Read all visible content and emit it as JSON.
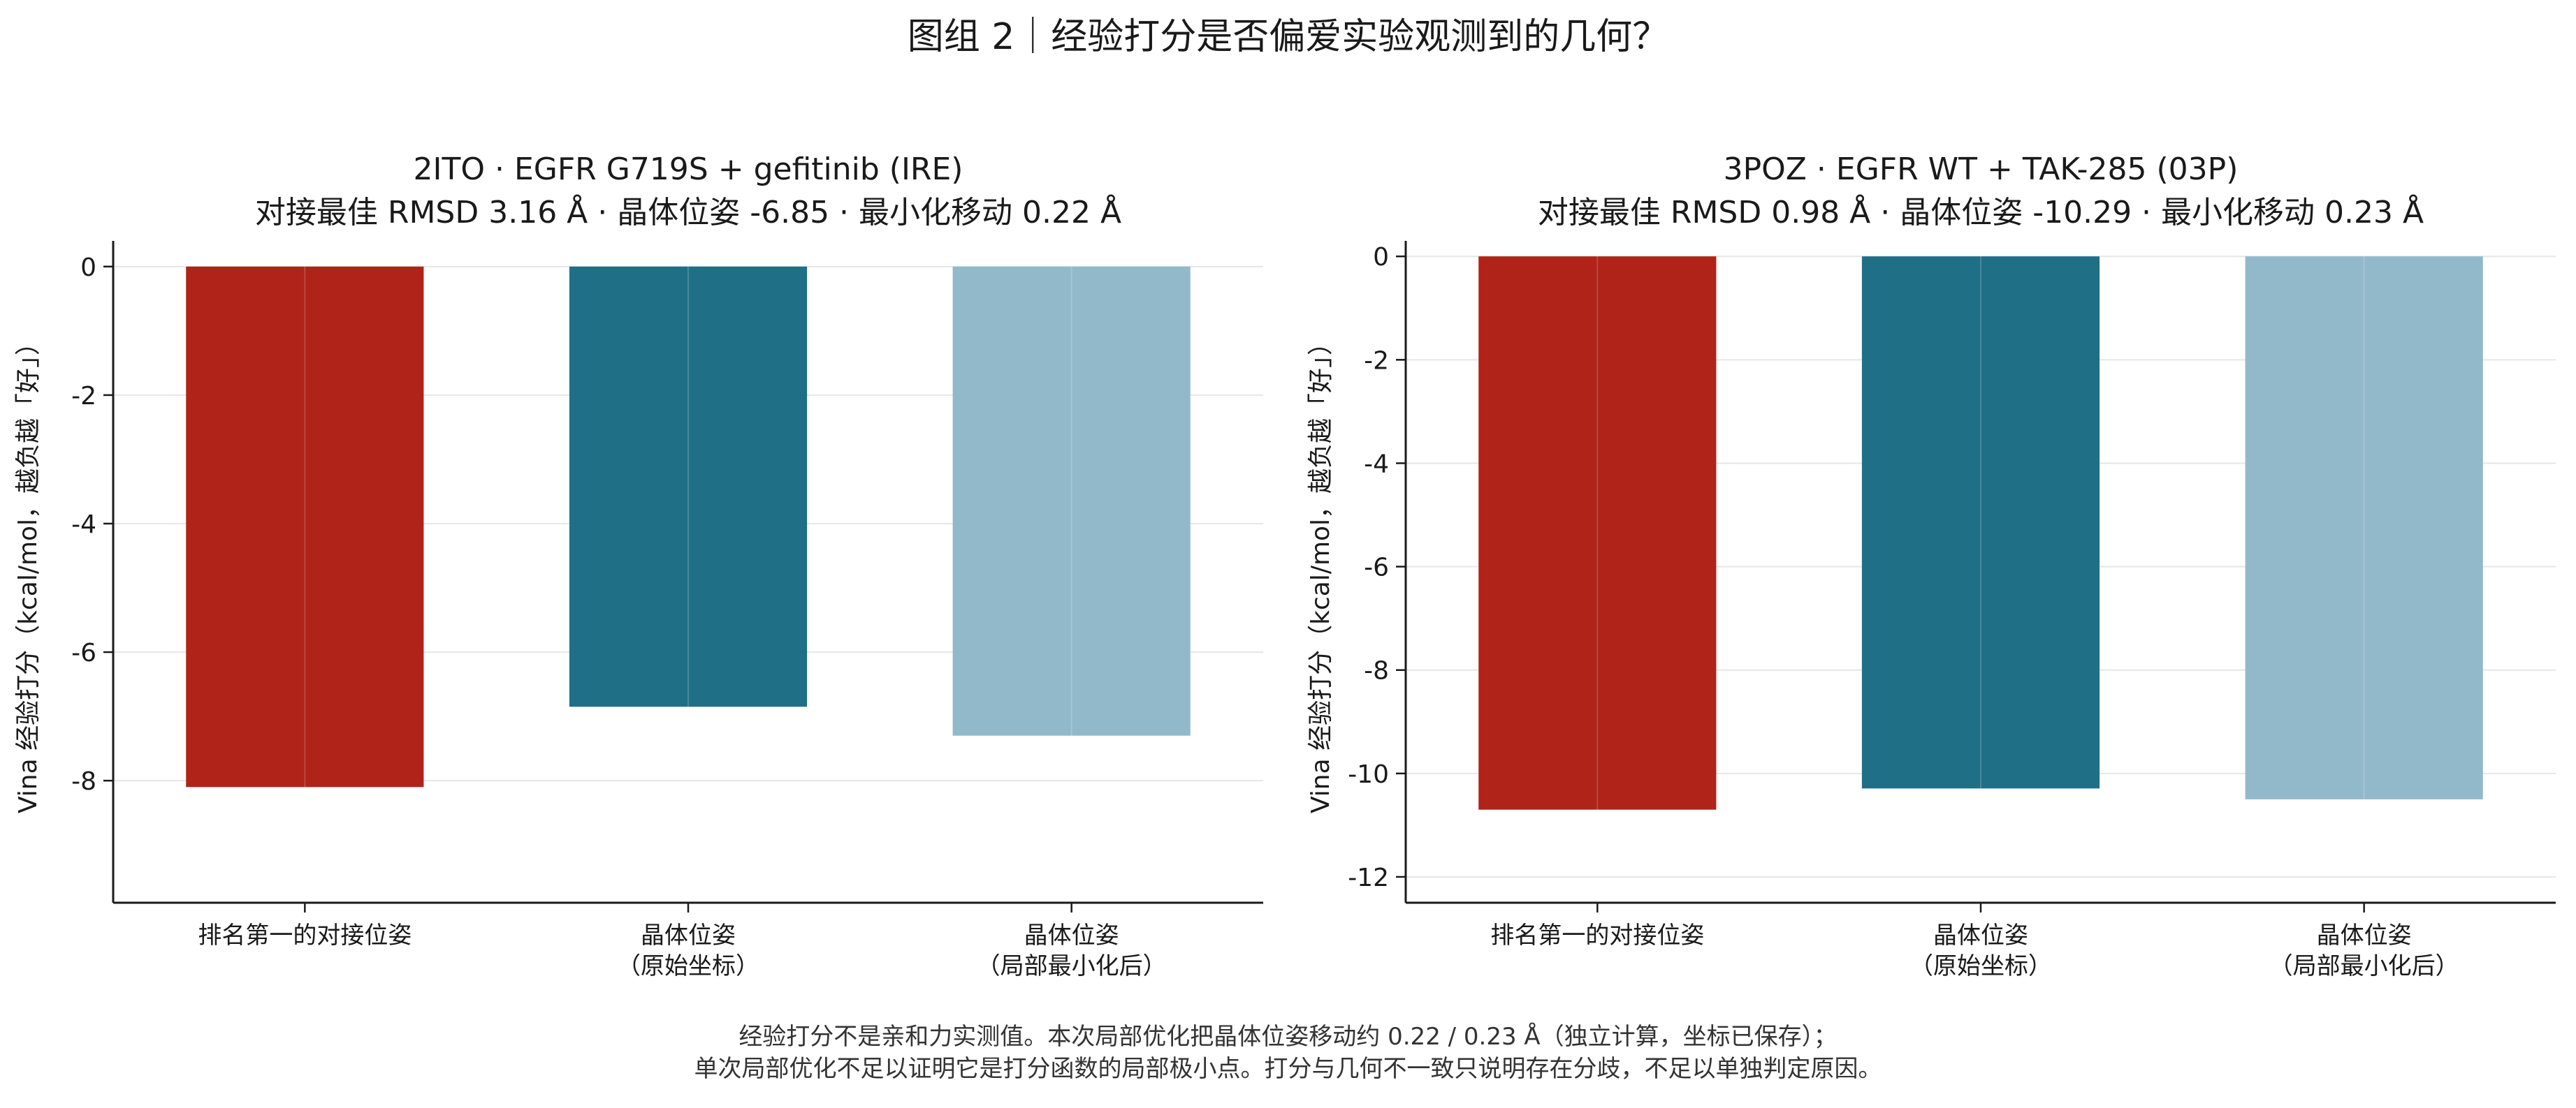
{
  "suptitle": "图组 2｜经验打分是否偏爱实验观测到的几何？",
  "colors": {
    "docked": "#B02318",
    "crystal": "#1F6F87",
    "minimized": "#92B9CA",
    "grid": "#e6e6e6",
    "axis": "#1a1a1a"
  },
  "panels": [
    {
      "title_line1": "2ITO · EGFR G719S + gefitinib (IRE)",
      "title_line2": "对接最佳 RMSD 3.16 Å   ·   晶体位姿 -6.85   ·   最小化移动 0.22 Å"
    },
    {
      "title_line1": "3POZ · EGFR WT + TAK-285 (03P)",
      "title_line2": "对接最佳 RMSD 0.98 Å   ·   晶体位姿 -10.29   ·   最小化移动 0.23 Å"
    }
  ],
  "chart_data": [
    {
      "type": "bar",
      "title": "2ITO · EGFR G719S + gefitinib (IRE)",
      "subtitle": "对接最佳 RMSD 3.16 Å   ·   晶体位姿 -6.85   ·   最小化移动 0.22 Å",
      "categories": [
        [
          "排名第一的对接位姿"
        ],
        [
          "晶体位姿",
          "（原始坐标）"
        ],
        [
          "晶体位姿",
          "（局部最小化后）"
        ]
      ],
      "values": [
        -8.1,
        -6.85,
        -7.3
      ],
      "colors": [
        "#B02318",
        "#1F6F87",
        "#92B9CA"
      ],
      "ylabel": "Vina 经验打分（kcal/mol，越负越「好」）",
      "xlabel": "",
      "ylim": [
        -9.9,
        0.4
      ],
      "yticks": [
        0,
        -2,
        -4,
        -6,
        -8
      ],
      "ytick_labels": [
        "0",
        "-2",
        "-4",
        "-6",
        "-8"
      ],
      "grid": true,
      "legend": "none"
    },
    {
      "type": "bar",
      "title": "3POZ · EGFR WT + TAK-285 (03P)",
      "subtitle": "对接最佳 RMSD 0.98 Å   ·   晶体位姿 -10.29   ·   最小化移动 0.23 Å",
      "categories": [
        [
          "排名第一的对接位姿"
        ],
        [
          "晶体位姿",
          "（原始坐标）"
        ],
        [
          "晶体位姿",
          "（局部最小化后）"
        ]
      ],
      "values": [
        -10.7,
        -10.29,
        -10.5
      ],
      "colors": [
        "#B02318",
        "#1F6F87",
        "#92B9CA"
      ],
      "ylabel": "Vina 经验打分（kcal/mol，越负越「好」）",
      "xlabel": "",
      "ylim": [
        -12.5,
        0.3
      ],
      "yticks": [
        0,
        -2,
        -4,
        -6,
        -8,
        -10,
        -12
      ],
      "ytick_labels": [
        "0",
        "-2",
        "-4",
        "-6",
        "-8",
        "-10",
        "-12"
      ],
      "grid": true,
      "legend": "none"
    }
  ],
  "footnote": {
    "line1": "经验打分不是亲和力实测值。本次局部优化把晶体位姿移动约 0.22 / 0.23 Å（独立计算，坐标已保存）；",
    "line2": "单次局部优化不足以证明它是打分函数的局部极小点。打分与几何不一致只说明存在分歧，不足以单独判定原因。"
  }
}
